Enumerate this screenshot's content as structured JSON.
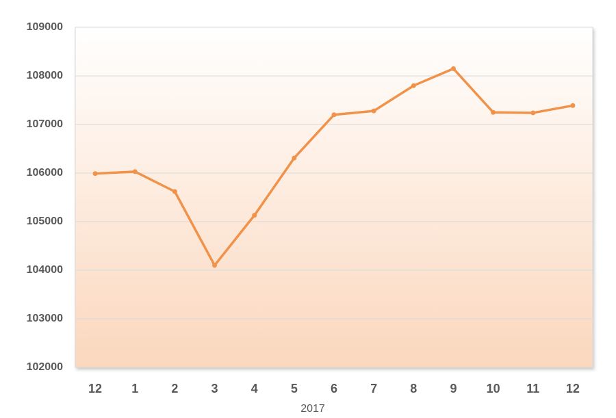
{
  "chart_data": {
    "type": "line",
    "xlabel": "2017",
    "categories": [
      "12",
      "1",
      "2",
      "3",
      "4",
      "5",
      "6",
      "7",
      "8",
      "9",
      "10",
      "11",
      "12"
    ],
    "values": [
      105990,
      106030,
      105620,
      104100,
      105130,
      106310,
      107200,
      107280,
      107800,
      108150,
      107250,
      107240,
      107390
    ],
    "color": "#f0924a",
    "ylim": [
      102000,
      109000
    ],
    "yticks": [
      102000,
      103000,
      104000,
      105000,
      106000,
      107000,
      108000,
      109000
    ],
    "grid": true
  }
}
